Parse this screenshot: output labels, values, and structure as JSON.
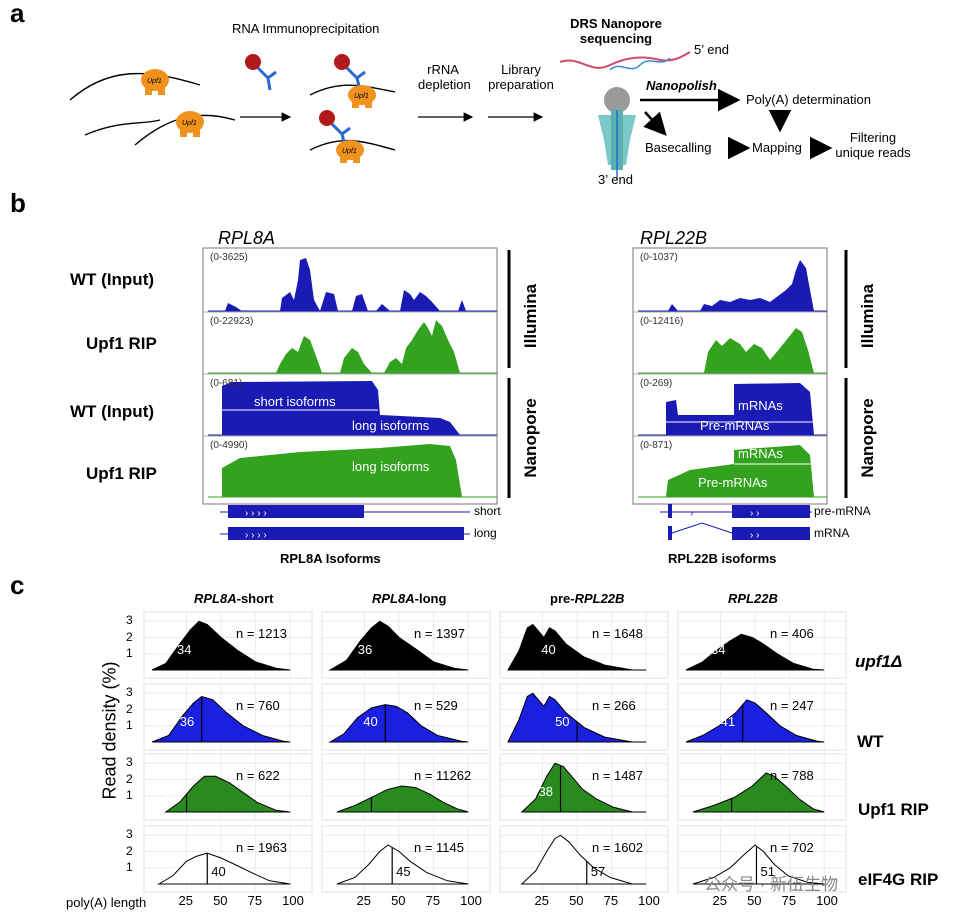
{
  "panel_a": {
    "label": "a",
    "rip_title": "RNA Immunoprecipitation",
    "upf1_tag": "Upf1",
    "rrna_line1": "rRNA",
    "rrna_line2": "depletion",
    "lib_line1": "Library",
    "lib_line2": "preparation",
    "drs_line1": "DRS Nanopore",
    "drs_line2": "sequencing",
    "five_end": "5’ end",
    "three_end": "3’ end",
    "nanopolish": "Nanopolish",
    "polya": "Poly(A) determination",
    "basecalling": "Basecalling",
    "mapping": "Mapping",
    "filter_line1": "Filtering",
    "filter_line2": "unique reads"
  },
  "panel_b": {
    "label": "b",
    "colors": {
      "blue": "#1a1ab4",
      "green": "#33a31f"
    },
    "left": {
      "gene": "RPL8A",
      "rows": [
        "WT (Input)",
        "Upf1 RIP",
        "WT (Input)",
        "Upf1 RIP"
      ],
      "ranges": [
        "(0-3625)",
        "(0-22923)",
        "(0-681)",
        "(0-4990)"
      ],
      "inner": {
        "short": "short isoforms",
        "long1": "long isoforms",
        "long2": "long isoforms"
      },
      "iso_labels": [
        "short",
        "long"
      ],
      "caption": "RPL8A Isoforms"
    },
    "right": {
      "gene": "RPL22B",
      "ranges": [
        "(0-1037)",
        "(0-12416)",
        "(0-269)",
        "(0-871)"
      ],
      "inner": {
        "mrna1": "mRNAs",
        "pre1": "Pre-mRNAs",
        "mrna2": "mRNAs",
        "pre2": "Pre-mRNAs"
      },
      "iso_labels": [
        "pre-mRNA",
        "mRNA"
      ],
      "caption": "RPL22B isoforms"
    },
    "platforms": [
      "Illumina",
      "Nanopore"
    ]
  },
  "panel_c": {
    "label": "c",
    "ylabel": "Read density (%)",
    "xlabel": "poly(A) length",
    "xticks": [
      "25",
      "50",
      "75",
      "100"
    ],
    "yticks": [
      "1",
      "2",
      "3"
    ],
    "col_titles": [
      {
        "italic": "RPL8A",
        "plain": "-short"
      },
      {
        "italic": "RPL8A",
        "plain": "-long"
      },
      {
        "plain": "pre-",
        "italic": "RPL22B"
      },
      {
        "italic": "RPL22B",
        "plain": ""
      }
    ],
    "row_labels": [
      "upf1Δ",
      "WT",
      "Upf1 RIP",
      "eIF4G RIP"
    ],
    "row_colors": [
      "#000000",
      "#1a1fe0",
      "#2a8a1f",
      "#ffffff"
    ],
    "cells": [
      [
        {
          "median": "34",
          "n": "n = 1213"
        },
        {
          "median": "36",
          "n": "n = 1397"
        },
        {
          "median": "40",
          "n": "n = 1648"
        },
        {
          "median": "34",
          "n": "n = 406"
        }
      ],
      [
        {
          "median": "36",
          "n": "n = 760"
        },
        {
          "median": "40",
          "n": "n = 529"
        },
        {
          "median": "50",
          "n": "n = 266"
        },
        {
          "median": "41",
          "n": "n = 247"
        }
      ],
      [
        {
          "median": "25",
          "n": "n = 622"
        },
        {
          "median": "30",
          "n": "n = 11262"
        },
        {
          "median": "38",
          "n": "n = 1487"
        },
        {
          "median": "33",
          "n": "n = 788"
        }
      ],
      [
        {
          "median": "40",
          "n": "n = 1963"
        },
        {
          "median": "45",
          "n": "n = 1145"
        },
        {
          "median": "57",
          "n": "n = 1602"
        },
        {
          "median": "51",
          "n": "n = 702"
        }
      ]
    ]
  },
  "watermark": "公众号 · 新伍生物"
}
